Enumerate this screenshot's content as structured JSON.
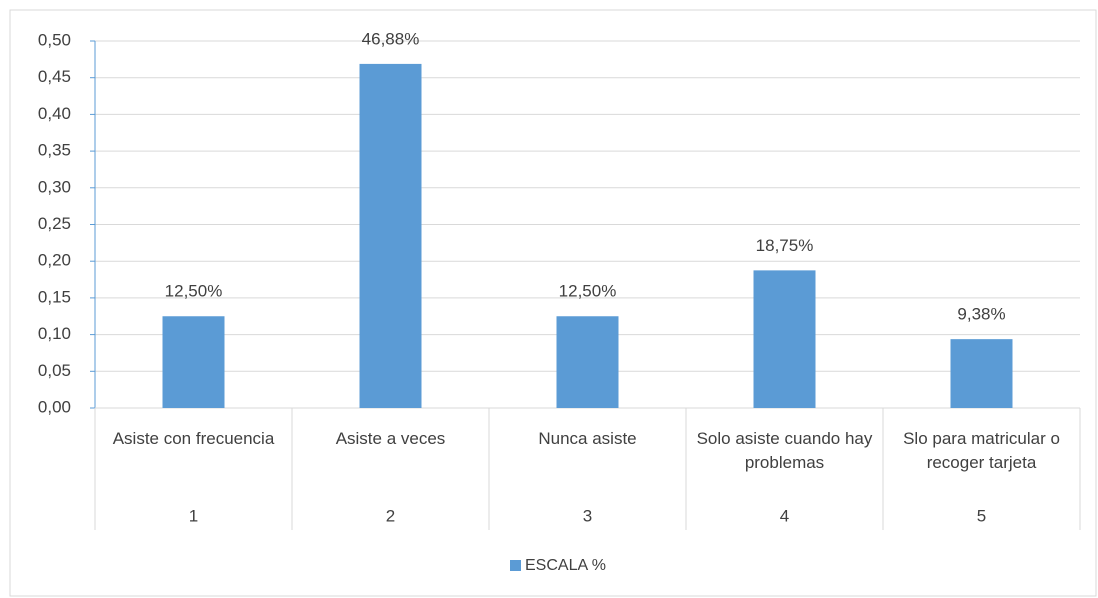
{
  "chart_data": {
    "type": "bar",
    "categories": [
      "Asiste con frecuencia",
      "Asiste a veces",
      "Nunca asiste",
      "Solo asiste cuando hay problemas",
      "Slo para matricular o recoger tarjeta"
    ],
    "groups": [
      "1",
      "2",
      "3",
      "4",
      "5"
    ],
    "series": [
      {
        "name": "ESCALA %",
        "color": "#5b9bd5",
        "values": [
          0.125,
          0.4688,
          0.125,
          0.1875,
          0.0938
        ],
        "value_labels": [
          "12,50%",
          "46,88%",
          "12,50%",
          "18,75%",
          "9,38%"
        ]
      }
    ],
    "ylim": [
      0,
      0.5
    ],
    "yticks": [
      {
        "value": 0,
        "label": "0,00"
      },
      {
        "value": 0.05,
        "label": "0,05"
      },
      {
        "value": 0.1,
        "label": "0,10"
      },
      {
        "value": 0.15,
        "label": "0,15"
      },
      {
        "value": 0.2,
        "label": "0,20"
      },
      {
        "value": 0.25,
        "label": "0,25"
      },
      {
        "value": 0.3,
        "label": "0,30"
      },
      {
        "value": 0.35,
        "label": "0,35"
      },
      {
        "value": 0.4,
        "label": "0,40"
      },
      {
        "value": 0.45,
        "label": "0,45"
      },
      {
        "value": 0.5,
        "label": "0,50"
      }
    ],
    "grid": true,
    "legend": "bottom"
  }
}
